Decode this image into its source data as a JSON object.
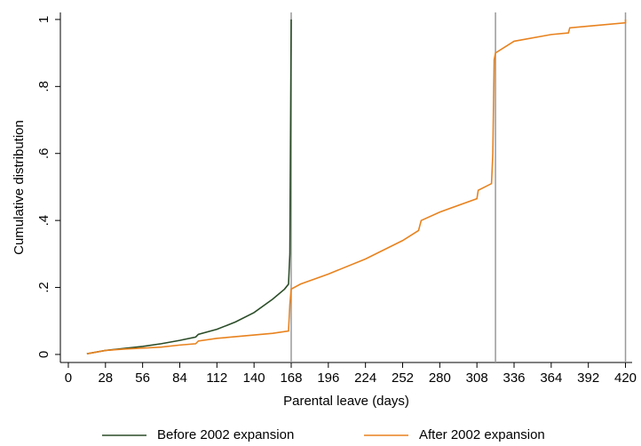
{
  "chart_data": {
    "type": "line",
    "x_label": "Parental leave (days)",
    "y_label": "Cumulative distribution",
    "xlim": [
      -6,
      425
    ],
    "ylim": [
      -0.024,
      1.021
    ],
    "xticks": [
      0,
      28,
      56,
      84,
      112,
      140,
      168,
      196,
      224,
      252,
      280,
      308,
      336,
      364,
      392,
      420
    ],
    "yticks": [
      0,
      {
        "value": 0.2,
        "label": ".2"
      },
      {
        "value": 0.4,
        "label": ".4"
      },
      {
        "value": 0.6,
        "label": ".6"
      },
      {
        "value": 0.8,
        "label": ".8"
      },
      1
    ],
    "vlines": [
      168,
      322,
      420
    ],
    "vline_color": "#999999",
    "series": [
      {
        "name": "Before 2002 expansion",
        "color": "#2b4d28",
        "x": [
          14,
          28,
          42,
          56,
          70,
          84,
          96,
          98,
          112,
          126,
          140,
          154,
          163,
          166,
          167,
          168
        ],
        "values": [
          0.002,
          0.012,
          0.018,
          0.024,
          0.032,
          0.042,
          0.052,
          0.06,
          0.075,
          0.097,
          0.125,
          0.165,
          0.195,
          0.21,
          0.3,
          1.0
        ]
      },
      {
        "name": "After 2002 expansion",
        "color": "#e8821e",
        "x": [
          14,
          28,
          42,
          56,
          70,
          84,
          96,
          98,
          112,
          126,
          140,
          154,
          166,
          167,
          168,
          175,
          196,
          224,
          252,
          264,
          266,
          280,
          308,
          309,
          319,
          320,
          321,
          322,
          336,
          364,
          377,
          378,
          392,
          420,
          420
        ],
        "values": [
          0.002,
          0.012,
          0.016,
          0.019,
          0.022,
          0.028,
          0.032,
          0.04,
          0.048,
          0.053,
          0.058,
          0.063,
          0.07,
          0.15,
          0.195,
          0.21,
          0.24,
          0.285,
          0.34,
          0.37,
          0.4,
          0.425,
          0.465,
          0.49,
          0.51,
          0.6,
          0.88,
          0.9,
          0.935,
          0.955,
          0.96,
          0.975,
          0.98,
          0.99,
          1.0
        ]
      }
    ]
  }
}
